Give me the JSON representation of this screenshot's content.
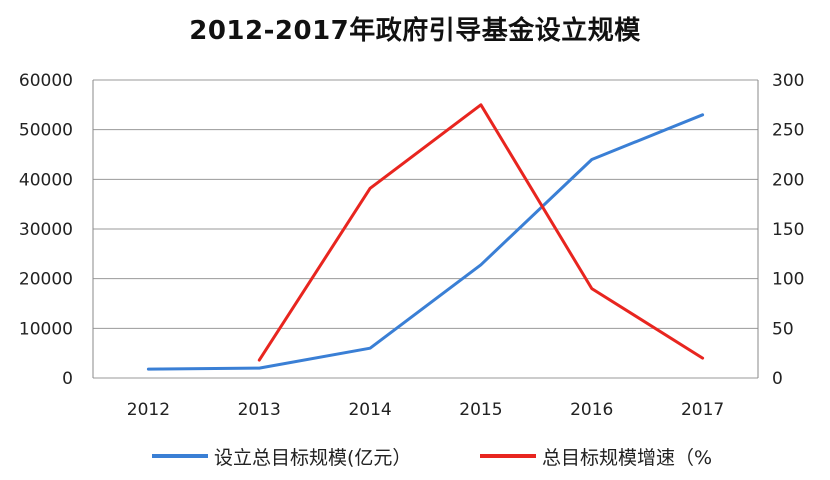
{
  "chart_data": {
    "type": "line",
    "title": "2012-2017年政府引导基金设立规模",
    "categories": [
      "2012",
      "2013",
      "2014",
      "2015",
      "2016",
      "2017"
    ],
    "y_left": {
      "ylim": [
        0,
        60000
      ],
      "ticks": [
        "0",
        "10000",
        "20000",
        "30000",
        "40000",
        "50000",
        "60000"
      ]
    },
    "y_right": {
      "ylim": [
        0,
        300
      ],
      "ticks": [
        "0",
        "50",
        "100",
        "150",
        "200",
        "250",
        "300"
      ]
    },
    "grid": true,
    "legend_position": "bottom",
    "series": [
      {
        "name": "设立总目标规模(亿元）",
        "axis": "left",
        "color": "#3A7FD5",
        "values": [
          1800,
          2000,
          6000,
          22800,
          44000,
          53000
        ]
      },
      {
        "name": "总目标规模增速（%",
        "axis": "right",
        "color": "#E8251F",
        "values": [
          null,
          18,
          191,
          275,
          90,
          20
        ]
      }
    ]
  }
}
